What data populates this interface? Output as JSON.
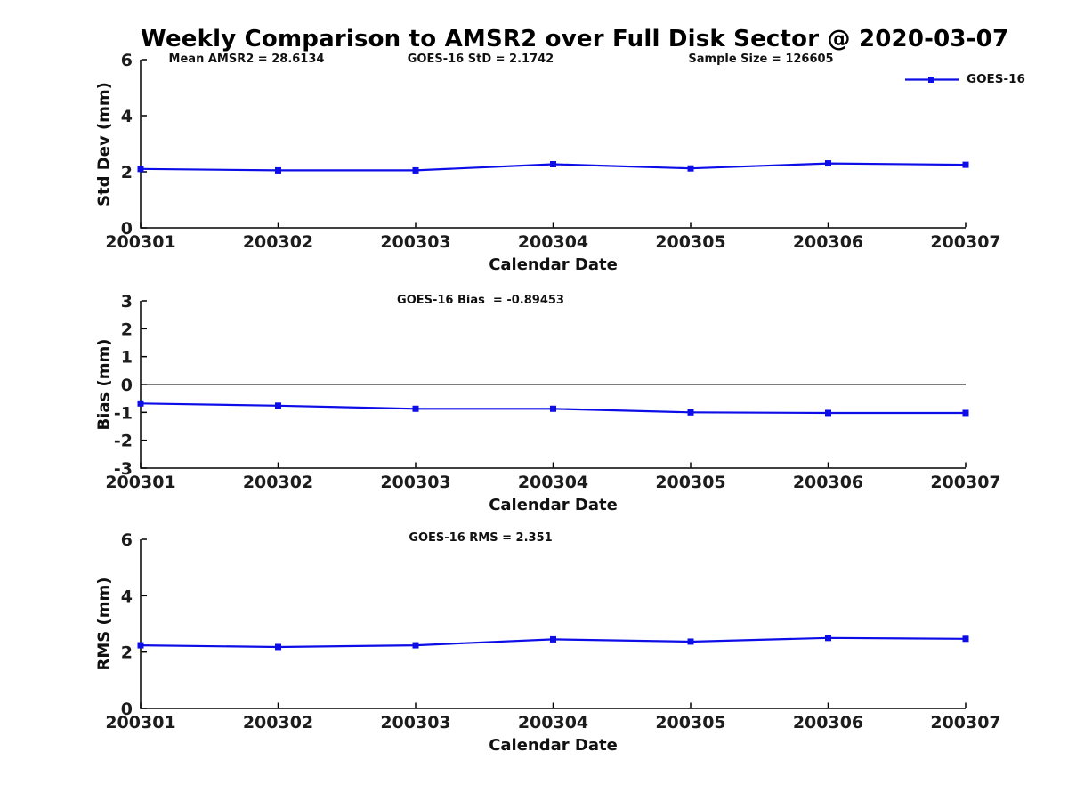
{
  "title": "Weekly Comparison to AMSR2 over Full Disk Sector @ 2020-03-07",
  "legend": {
    "label": "GOES-16"
  },
  "colors": {
    "line": "#0d0de8",
    "axis": "#000000",
    "text": "#111111"
  },
  "chart_data": [
    {
      "type": "line",
      "name": "std-dev",
      "annotations": [
        "Mean AMSR2 = 28.6134",
        "GOES-16 StD = 2.1742",
        "Sample Size = 126605"
      ],
      "ylabel": "Std Dev (mm)",
      "xlabel": "Calendar Date",
      "categories": [
        "200301",
        "200302",
        "200303",
        "200304",
        "200305",
        "200306",
        "200307"
      ],
      "series": [
        {
          "name": "GOES-16",
          "values": [
            2.1,
            2.05,
            2.05,
            2.27,
            2.12,
            2.3,
            2.25
          ]
        }
      ],
      "ylim": [
        0,
        6
      ],
      "yticks": [
        0,
        2,
        4,
        6
      ],
      "zero_line": false,
      "grid": false,
      "legend_position": "top-right",
      "marker": "square"
    },
    {
      "type": "line",
      "name": "bias",
      "annotations": [
        "GOES-16 Bias  = -0.89453"
      ],
      "ylabel": "Bias (mm)",
      "xlabel": "Calendar Date",
      "categories": [
        "200301",
        "200302",
        "200303",
        "200304",
        "200305",
        "200306",
        "200307"
      ],
      "series": [
        {
          "name": "GOES-16",
          "values": [
            -0.68,
            -0.76,
            -0.87,
            -0.87,
            -1.0,
            -1.02,
            -1.02
          ]
        }
      ],
      "ylim": [
        -3,
        3
      ],
      "yticks": [
        3,
        2,
        1,
        0,
        -1,
        -2,
        -3
      ],
      "zero_line": true,
      "grid": false,
      "marker": "square"
    },
    {
      "type": "line",
      "name": "rms",
      "annotations": [
        "GOES-16 RMS = 2.351"
      ],
      "ylabel": "RMS (mm)",
      "xlabel": "Calendar Date",
      "categories": [
        "200301",
        "200302",
        "200303",
        "200304",
        "200305",
        "200306",
        "200307"
      ],
      "series": [
        {
          "name": "GOES-16",
          "values": [
            2.24,
            2.18,
            2.24,
            2.45,
            2.37,
            2.5,
            2.47
          ]
        }
      ],
      "ylim": [
        0,
        6
      ],
      "yticks": [
        0,
        2,
        4,
        6
      ],
      "zero_line": false,
      "grid": false,
      "marker": "square"
    }
  ]
}
